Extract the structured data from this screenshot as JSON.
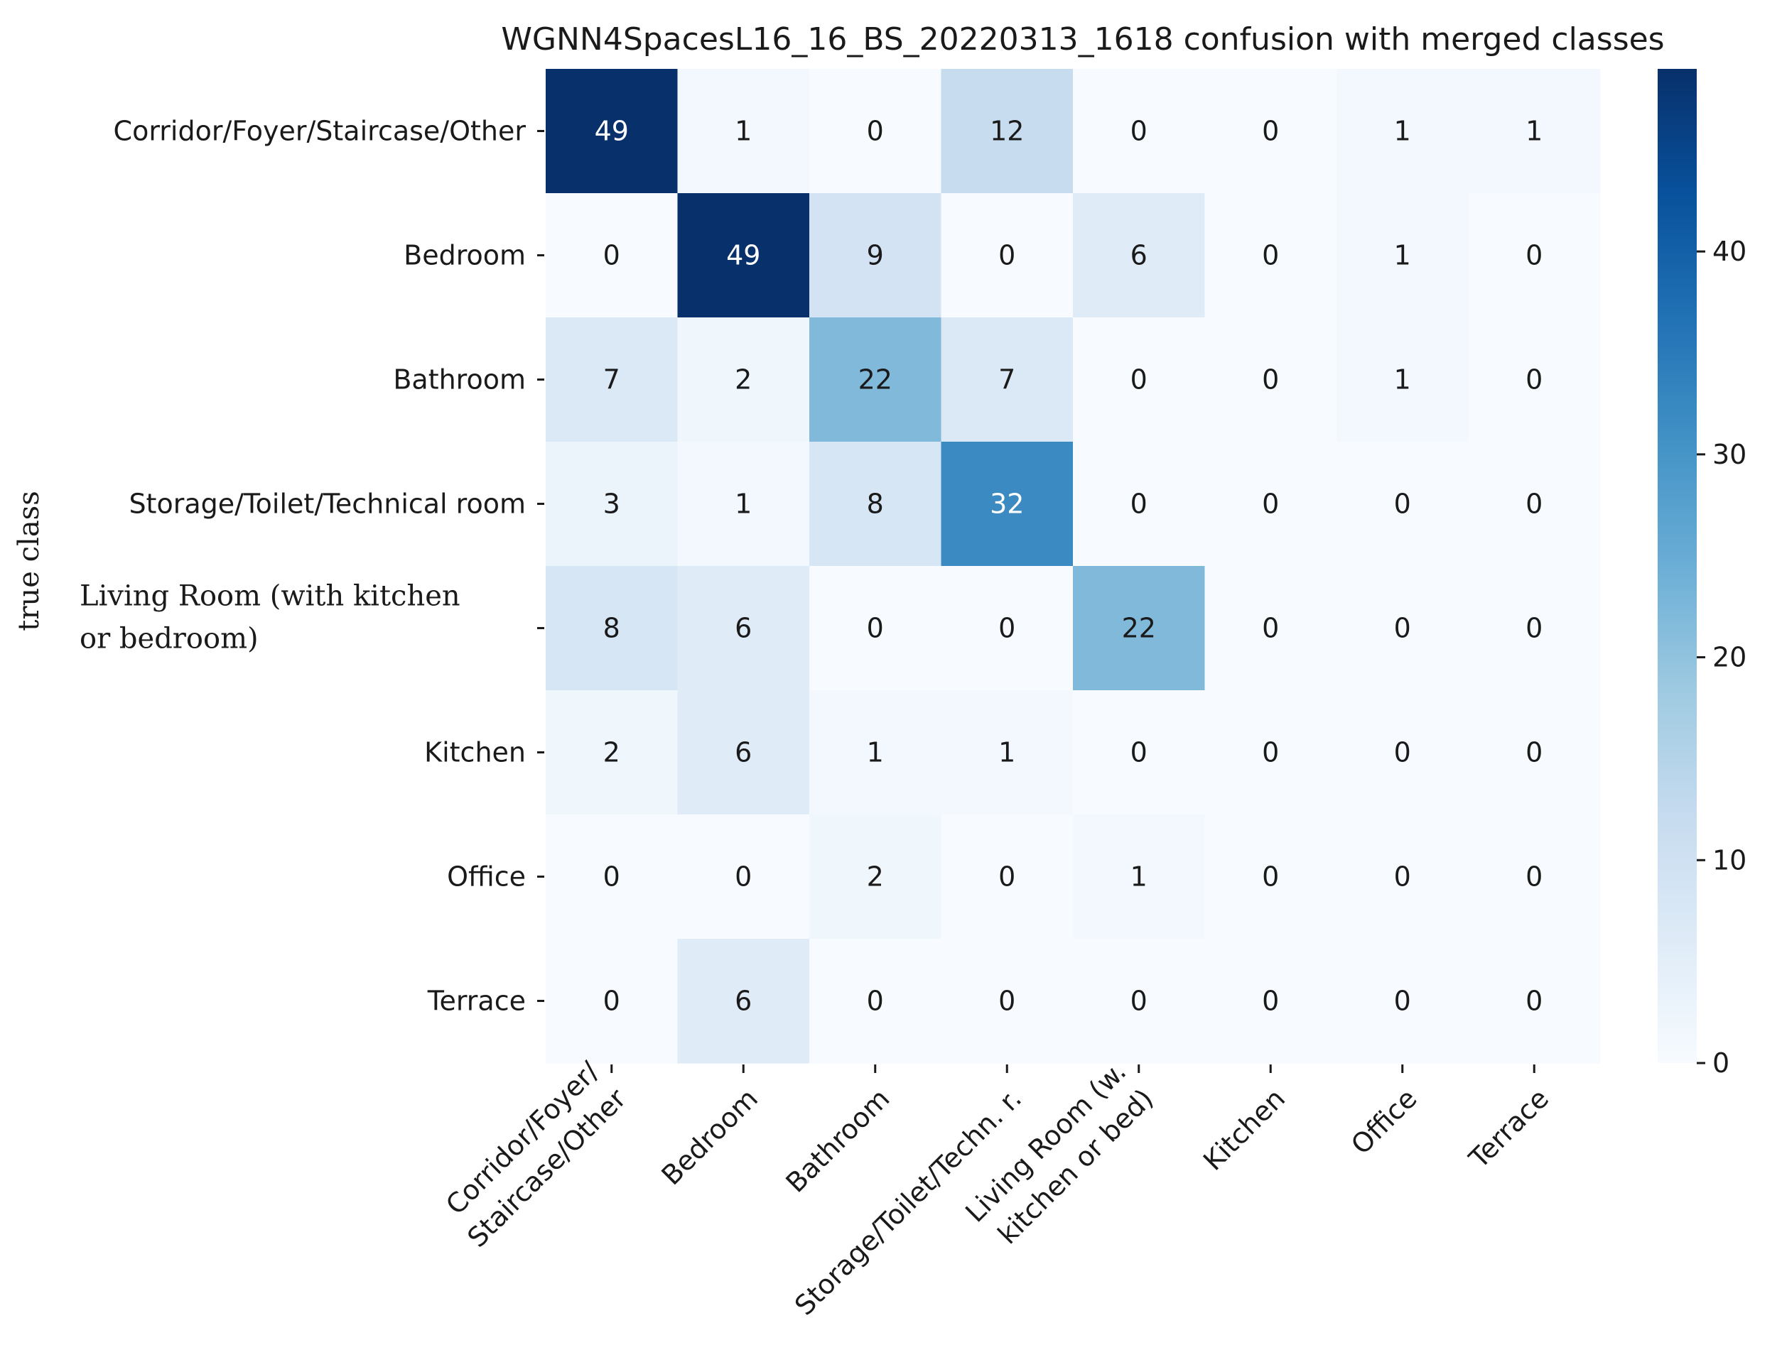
{
  "chart_data": {
    "type": "heatmap",
    "title": "WGNN4SpacesL16_16_BS_20220313_1618 confusion with merged classes",
    "ylabel": "true class",
    "xlabel": "",
    "row_labels": [
      [
        "Corridor/Foyer/Staircase/Other"
      ],
      [
        "Bedroom"
      ],
      [
        "Bathroom"
      ],
      [
        "Storage/Toilet/Technical room"
      ],
      [
        "Living Room (with kitchen",
        "or bedroom)"
      ],
      [
        "Kitchen"
      ],
      [
        "Office"
      ],
      [
        "Terrace"
      ]
    ],
    "col_labels": [
      [
        "Corridor/Foyer/",
        "Staircase/Other"
      ],
      [
        "Bedroom"
      ],
      [
        "Bathroom"
      ],
      [
        "Storage/Toilet/Techn. r."
      ],
      [
        "Living Room (w.",
        "kitchen or bed)"
      ],
      [
        "Kitchen"
      ],
      [
        "Office"
      ],
      [
        "Terrace"
      ]
    ],
    "values": [
      [
        49,
        1,
        0,
        12,
        0,
        0,
        1,
        1
      ],
      [
        0,
        49,
        9,
        0,
        6,
        0,
        1,
        0
      ],
      [
        7,
        2,
        22,
        7,
        0,
        0,
        1,
        0
      ],
      [
        3,
        1,
        8,
        32,
        0,
        0,
        0,
        0
      ],
      [
        8,
        6,
        0,
        0,
        22,
        0,
        0,
        0
      ],
      [
        2,
        6,
        1,
        1,
        0,
        0,
        0,
        0
      ],
      [
        0,
        0,
        2,
        0,
        1,
        0,
        0,
        0
      ],
      [
        0,
        6,
        0,
        0,
        0,
        0,
        0,
        0
      ]
    ],
    "colorbar": {
      "min": 0,
      "max": 49,
      "ticks": [
        0,
        10,
        20,
        30,
        40
      ],
      "colormap": "Blues"
    }
  },
  "colors": {
    "text_dark": "#1a1a1a",
    "text_light": "#ffffff",
    "blues": [
      "#f7fbff",
      "#deebf7",
      "#c6dbef",
      "#9ecae1",
      "#6baed6",
      "#4292c6",
      "#2171b5",
      "#08519c",
      "#08306b"
    ]
  }
}
